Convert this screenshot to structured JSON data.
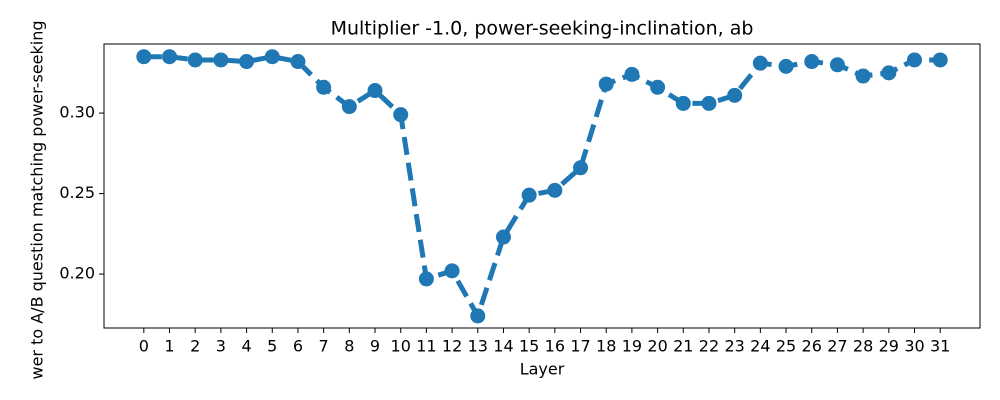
{
  "chart_data": {
    "type": "line",
    "title": "Multiplier -1.0, power-seeking-inclination, ab",
    "x_label": "Layer",
    "y_label": "wer to A/B question matching power-seeking",
    "x": [
      0,
      1,
      2,
      3,
      4,
      5,
      6,
      7,
      8,
      9,
      10,
      11,
      12,
      13,
      14,
      15,
      16,
      17,
      18,
      19,
      20,
      21,
      22,
      23,
      24,
      25,
      26,
      27,
      28,
      29,
      30,
      31
    ],
    "series": [
      {
        "color": "#1f77b4",
        "values": [
          0.335,
          0.335,
          0.333,
          0.333,
          0.332,
          0.335,
          0.332,
          0.316,
          0.304,
          0.314,
          0.299,
          0.197,
          0.202,
          0.174,
          0.223,
          0.249,
          0.252,
          0.266,
          0.318,
          0.324,
          0.316,
          0.306,
          0.306,
          0.311,
          0.331,
          0.329,
          0.332,
          0.33,
          0.323,
          0.325,
          0.333,
          0.333
        ]
      }
    ],
    "xlim": [
      -1.55,
      32.55
    ],
    "ylim": [
      0.1665,
      0.3429
    ],
    "xticks": [
      0,
      1,
      2,
      3,
      4,
      5,
      6,
      7,
      8,
      9,
      10,
      11,
      12,
      13,
      14,
      15,
      16,
      17,
      18,
      19,
      20,
      21,
      22,
      23,
      24,
      25,
      26,
      27,
      28,
      29,
      30,
      31
    ],
    "yticks": [
      {
        "value": 0.2,
        "label": "0.20"
      },
      {
        "value": 0.25,
        "label": "0.25"
      },
      {
        "value": 0.3,
        "label": "0.30"
      }
    ],
    "line_style": "dashed"
  }
}
